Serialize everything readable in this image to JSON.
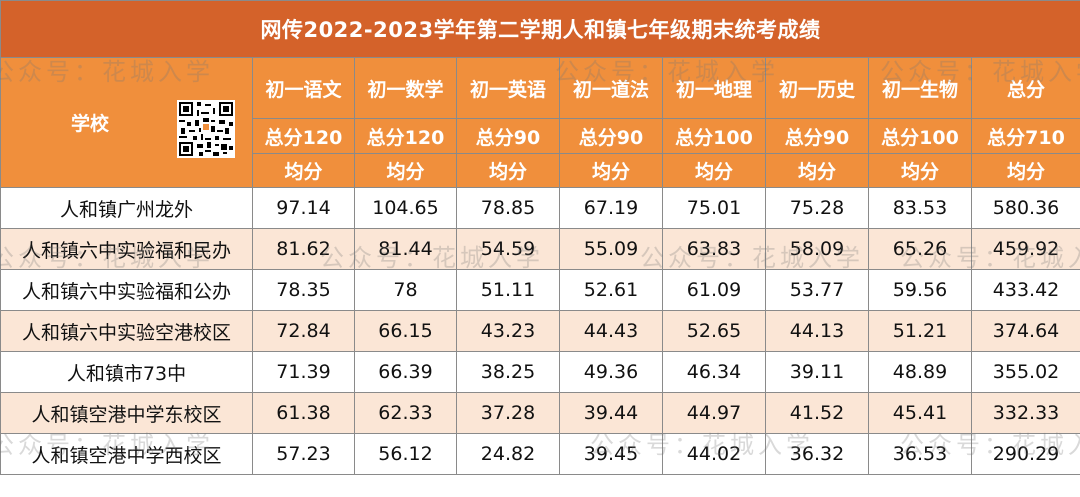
{
  "title": "网传2022-2023学年第二学期人和镇七年级期末统考成绩",
  "header": {
    "school_label": "学校",
    "subjects": [
      "初一语文",
      "初一数学",
      "初一英语",
      "初一道法",
      "初一地理",
      "初一历史",
      "初一生物",
      "总分"
    ],
    "full_marks": [
      "总分120",
      "总分120",
      "总分90",
      "总分90",
      "总分100",
      "总分90",
      "总分100",
      "总分710"
    ],
    "metric": [
      "均分",
      "均分",
      "均分",
      "均分",
      "均分",
      "均分",
      "均分",
      "均分"
    ]
  },
  "rows": [
    {
      "school": "人和镇广州龙外",
      "scores": [
        "97.14",
        "104.65",
        "78.85",
        "67.19",
        "75.01",
        "75.28",
        "83.53",
        "580.36"
      ]
    },
    {
      "school": "人和镇六中实验福和民办",
      "scores": [
        "81.62",
        "81.44",
        "54.59",
        "55.09",
        "63.83",
        "58.09",
        "65.26",
        "459.92"
      ]
    },
    {
      "school": "人和镇六中实验福和公办",
      "scores": [
        "78.35",
        "78",
        "51.11",
        "52.61",
        "61.09",
        "53.77",
        "59.56",
        "433.42"
      ]
    },
    {
      "school": "人和镇六中实验空港校区",
      "scores": [
        "72.84",
        "66.15",
        "43.23",
        "44.43",
        "52.65",
        "44.13",
        "51.21",
        "374.64"
      ]
    },
    {
      "school": "人和镇市73中",
      "scores": [
        "71.39",
        "66.39",
        "38.25",
        "49.36",
        "46.34",
        "39.11",
        "48.89",
        "355.02"
      ]
    },
    {
      "school": "人和镇空港中学东校区",
      "scores": [
        "61.38",
        "62.33",
        "37.28",
        "39.44",
        "44.97",
        "41.52",
        "45.41",
        "332.33"
      ]
    },
    {
      "school": "人和镇空港中学西校区",
      "scores": [
        "57.23",
        "56.12",
        "24.82",
        "39.45",
        "44.02",
        "36.32",
        "36.53",
        "290.29"
      ]
    }
  ],
  "watermark": "公众号：花城入学",
  "qr_icon": "qr-code-icon",
  "colors": {
    "title_bg": "#d4622a",
    "header_bg": "#f08f3c",
    "row_alt": "#fbe6d6"
  }
}
